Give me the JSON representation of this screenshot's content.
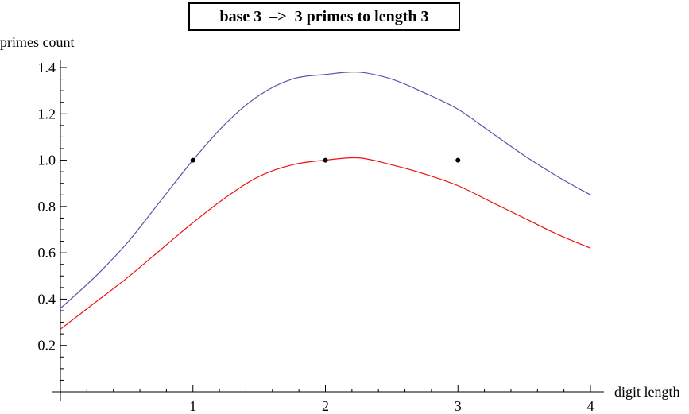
{
  "chart_data": {
    "type": "line",
    "title": "base 3  –>  3 primes to length 3",
    "xlabel": "digit length",
    "ylabel": "primes count",
    "xlim": [
      0,
      4
    ],
    "ylim": [
      0,
      1.4
    ],
    "x_ticks": [
      "1",
      "2",
      "3",
      "4"
    ],
    "y_ticks": [
      "0.2",
      "0.4",
      "0.6",
      "0.8",
      "1.0",
      "1.2",
      "1.4"
    ],
    "grid": false,
    "series": [
      {
        "color": "#5555aa",
        "x": [
          0,
          0.25,
          0.5,
          0.75,
          1.0,
          1.25,
          1.5,
          1.75,
          2.0,
          2.25,
          2.5,
          2.75,
          3.0,
          3.25,
          3.5,
          3.75,
          4.0
        ],
        "values": [
          0.36,
          0.49,
          0.64,
          0.82,
          1.0,
          1.16,
          1.28,
          1.35,
          1.37,
          1.38,
          1.35,
          1.29,
          1.22,
          1.12,
          1.02,
          0.93,
          0.85
        ]
      },
      {
        "color": "#ee1111",
        "x": [
          0,
          0.25,
          0.5,
          0.75,
          1.0,
          1.25,
          1.5,
          1.75,
          2.0,
          2.25,
          2.5,
          2.75,
          3.0,
          3.25,
          3.5,
          3.75,
          4.0
        ],
        "values": [
          0.27,
          0.38,
          0.49,
          0.61,
          0.73,
          0.84,
          0.93,
          0.98,
          1.0,
          1.01,
          0.98,
          0.94,
          0.89,
          0.82,
          0.75,
          0.68,
          0.62
        ]
      }
    ],
    "points": [
      {
        "x": 1,
        "y": 1.0
      },
      {
        "x": 2,
        "y": 1.0
      },
      {
        "x": 3,
        "y": 1.0
      }
    ]
  }
}
